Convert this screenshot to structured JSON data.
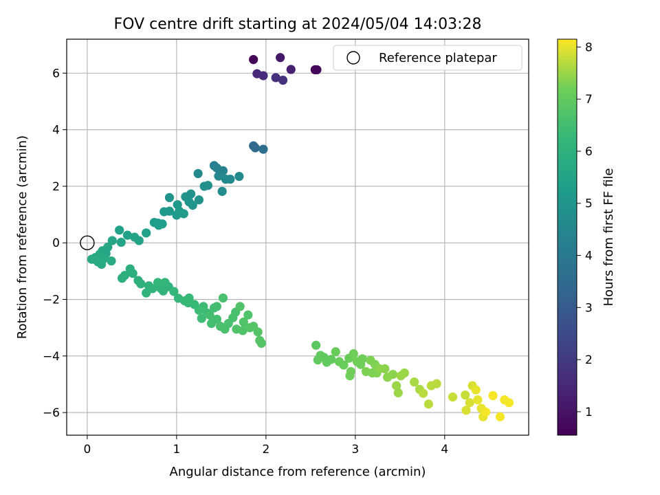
{
  "chart_data": {
    "type": "scatter",
    "title": "FOV centre drift starting at 2024/05/04 14:03:28",
    "xlabel": "Angular distance from reference (arcmin)",
    "ylabel": "Rotation from reference (arcmin)",
    "xlim": [
      -0.23,
      4.94
    ],
    "ylim": [
      -6.8,
      7.2
    ],
    "xticks": [
      0,
      1,
      2,
      3,
      4
    ],
    "yticks": [
      -6,
      -4,
      -2,
      0,
      2,
      4,
      6
    ],
    "grid": true,
    "legend": {
      "position": "top-right",
      "entries": [
        "Reference platepar"
      ]
    },
    "reference_point": {
      "x": 0,
      "y": 0,
      "label": "Reference platepar"
    },
    "colorbar": {
      "label": "Hours from first FF file",
      "colormap": "viridis",
      "range": [
        0.55,
        8.15
      ],
      "ticks": [
        1,
        2,
        3,
        4,
        5,
        6,
        7,
        8
      ]
    },
    "points": [
      {
        "x": 1.86,
        "y": 6.48,
        "c": 0.6
      },
      {
        "x": 2.55,
        "y": 6.12,
        "c": 0.65
      },
      {
        "x": 2.57,
        "y": 6.12,
        "c": 0.7
      },
      {
        "x": 2.16,
        "y": 6.55,
        "c": 1.1
      },
      {
        "x": 2.28,
        "y": 6.13,
        "c": 1.3
      },
      {
        "x": 1.9,
        "y": 5.98,
        "c": 1.5
      },
      {
        "x": 1.97,
        "y": 5.91,
        "c": 1.6
      },
      {
        "x": 2.11,
        "y": 5.84,
        "c": 1.7
      },
      {
        "x": 2.19,
        "y": 5.75,
        "c": 1.8
      },
      {
        "x": 1.86,
        "y": 3.43,
        "c": 3.4
      },
      {
        "x": 1.88,
        "y": 3.36,
        "c": 3.5
      },
      {
        "x": 1.97,
        "y": 3.31,
        "c": 3.6
      },
      {
        "x": 1.42,
        "y": 2.73,
        "c": 4.2
      },
      {
        "x": 1.45,
        "y": 2.65,
        "c": 4.3
      },
      {
        "x": 1.52,
        "y": 2.55,
        "c": 4.4
      },
      {
        "x": 1.47,
        "y": 2.36,
        "c": 4.5
      },
      {
        "x": 1.55,
        "y": 2.25,
        "c": 4.6
      },
      {
        "x": 1.6,
        "y": 2.25,
        "c": 4.6
      },
      {
        "x": 1.7,
        "y": 2.35,
        "c": 4.6
      },
      {
        "x": 1.51,
        "y": 1.82,
        "c": 4.7
      },
      {
        "x": 1.24,
        "y": 2.45,
        "c": 4.6
      },
      {
        "x": 1.35,
        "y": 2.03,
        "c": 4.8
      },
      {
        "x": 1.31,
        "y": 2.0,
        "c": 4.8
      },
      {
        "x": 1.1,
        "y": 1.63,
        "c": 4.9
      },
      {
        "x": 1.16,
        "y": 1.73,
        "c": 4.9
      },
      {
        "x": 1.25,
        "y": 1.52,
        "c": 4.9
      },
      {
        "x": 1.14,
        "y": 1.45,
        "c": 5.0
      },
      {
        "x": 1.18,
        "y": 1.33,
        "c": 5.0
      },
      {
        "x": 0.92,
        "y": 1.6,
        "c": 5.0
      },
      {
        "x": 1.01,
        "y": 1.35,
        "c": 5.1
      },
      {
        "x": 0.92,
        "y": 1.12,
        "c": 5.1
      },
      {
        "x": 0.86,
        "y": 1.1,
        "c": 5.1
      },
      {
        "x": 1.03,
        "y": 1.12,
        "c": 5.2
      },
      {
        "x": 1.08,
        "y": 1.03,
        "c": 5.2
      },
      {
        "x": 1.0,
        "y": 0.98,
        "c": 5.2
      },
      {
        "x": 0.75,
        "y": 0.72,
        "c": 5.3
      },
      {
        "x": 0.79,
        "y": 0.7,
        "c": 5.3
      },
      {
        "x": 0.8,
        "y": 0.62,
        "c": 5.3
      },
      {
        "x": 0.84,
        "y": 0.67,
        "c": 5.3
      },
      {
        "x": 0.66,
        "y": 0.35,
        "c": 5.4
      },
      {
        "x": 0.36,
        "y": 0.45,
        "c": 5.4
      },
      {
        "x": 0.45,
        "y": 0.27,
        "c": 5.4
      },
      {
        "x": 0.53,
        "y": 0.2,
        "c": 5.5
      },
      {
        "x": 0.58,
        "y": 0.08,
        "c": 5.5
      },
      {
        "x": 0.38,
        "y": 0.02,
        "c": 5.5
      },
      {
        "x": 0.28,
        "y": 0.08,
        "c": 5.6
      },
      {
        "x": 0.23,
        "y": -0.15,
        "c": 5.6
      },
      {
        "x": 0.17,
        "y": -0.28,
        "c": 5.6
      },
      {
        "x": 0.21,
        "y": -0.38,
        "c": 5.6
      },
      {
        "x": 0.14,
        "y": -0.4,
        "c": 5.7
      },
      {
        "x": 0.09,
        "y": -0.52,
        "c": 5.7
      },
      {
        "x": 0.05,
        "y": -0.58,
        "c": 5.7
      },
      {
        "x": 0.12,
        "y": -0.67,
        "c": 5.7
      },
      {
        "x": 0.19,
        "y": -0.55,
        "c": 5.7
      },
      {
        "x": 0.27,
        "y": -0.64,
        "c": 5.8
      },
      {
        "x": 0.16,
        "y": -0.76,
        "c": 5.8
      },
      {
        "x": 0.1,
        "y": -0.6,
        "c": 5.8
      },
      {
        "x": 0.48,
        "y": -0.92,
        "c": 5.9
      },
      {
        "x": 0.51,
        "y": -1.08,
        "c": 5.9
      },
      {
        "x": 0.42,
        "y": -1.15,
        "c": 5.9
      },
      {
        "x": 0.39,
        "y": -1.25,
        "c": 5.9
      },
      {
        "x": 0.57,
        "y": -1.33,
        "c": 6.0
      },
      {
        "x": 0.6,
        "y": -1.45,
        "c": 6.0
      },
      {
        "x": 0.69,
        "y": -1.52,
        "c": 6.0
      },
      {
        "x": 0.73,
        "y": -1.62,
        "c": 6.1
      },
      {
        "x": 0.66,
        "y": -1.77,
        "c": 6.1
      },
      {
        "x": 0.82,
        "y": -1.6,
        "c": 6.1
      },
      {
        "x": 0.85,
        "y": -1.7,
        "c": 6.1
      },
      {
        "x": 0.91,
        "y": -1.55,
        "c": 6.1
      },
      {
        "x": 0.79,
        "y": -1.4,
        "c": 6.2
      },
      {
        "x": 0.87,
        "y": -1.4,
        "c": 6.2
      },
      {
        "x": 0.97,
        "y": -1.72,
        "c": 6.2
      },
      {
        "x": 1.02,
        "y": -1.96,
        "c": 6.2
      },
      {
        "x": 1.09,
        "y": -2.05,
        "c": 6.3
      },
      {
        "x": 1.13,
        "y": -2.12,
        "c": 6.3
      },
      {
        "x": 1.14,
        "y": -1.95,
        "c": 6.3
      },
      {
        "x": 1.2,
        "y": -2.18,
        "c": 6.3
      },
      {
        "x": 1.25,
        "y": -2.38,
        "c": 6.4
      },
      {
        "x": 1.3,
        "y": -2.25,
        "c": 6.4
      },
      {
        "x": 1.34,
        "y": -2.48,
        "c": 6.4
      },
      {
        "x": 1.28,
        "y": -2.67,
        "c": 6.4
      },
      {
        "x": 1.37,
        "y": -2.55,
        "c": 6.5
      },
      {
        "x": 1.42,
        "y": -2.3,
        "c": 6.5
      },
      {
        "x": 1.45,
        "y": -2.25,
        "c": 6.5
      },
      {
        "x": 1.39,
        "y": -2.85,
        "c": 6.5
      },
      {
        "x": 1.45,
        "y": -2.7,
        "c": 6.5
      },
      {
        "x": 1.49,
        "y": -2.95,
        "c": 6.6
      },
      {
        "x": 1.52,
        "y": -1.95,
        "c": 6.6
      },
      {
        "x": 1.54,
        "y": -3.05,
        "c": 6.6
      },
      {
        "x": 1.58,
        "y": -2.85,
        "c": 6.6
      },
      {
        "x": 1.63,
        "y": -2.65,
        "c": 6.6
      },
      {
        "x": 1.66,
        "y": -2.45,
        "c": 6.6
      },
      {
        "x": 1.67,
        "y": -3.05,
        "c": 6.7
      },
      {
        "x": 1.71,
        "y": -2.25,
        "c": 6.7
      },
      {
        "x": 1.75,
        "y": -2.8,
        "c": 6.7
      },
      {
        "x": 1.74,
        "y": -3.1,
        "c": 6.7
      },
      {
        "x": 1.8,
        "y": -2.55,
        "c": 6.7
      },
      {
        "x": 1.82,
        "y": -3.0,
        "c": 6.8
      },
      {
        "x": 1.86,
        "y": -2.95,
        "c": 6.8
      },
      {
        "x": 1.91,
        "y": -3.15,
        "c": 6.8
      },
      {
        "x": 1.93,
        "y": -3.45,
        "c": 6.8
      },
      {
        "x": 1.95,
        "y": -3.55,
        "c": 6.8
      },
      {
        "x": 2.56,
        "y": -3.62,
        "c": 6.9
      },
      {
        "x": 2.61,
        "y": -3.98,
        "c": 7.0
      },
      {
        "x": 2.58,
        "y": -4.14,
        "c": 7.0
      },
      {
        "x": 2.65,
        "y": -4.05,
        "c": 7.0
      },
      {
        "x": 2.68,
        "y": -4.22,
        "c": 7.0
      },
      {
        "x": 2.73,
        "y": -4.12,
        "c": 7.0
      },
      {
        "x": 2.78,
        "y": -3.85,
        "c": 7.1
      },
      {
        "x": 2.82,
        "y": -4.2,
        "c": 7.1
      },
      {
        "x": 2.87,
        "y": -4.32,
        "c": 7.1
      },
      {
        "x": 2.93,
        "y": -4.08,
        "c": 7.1
      },
      {
        "x": 2.98,
        "y": -3.92,
        "c": 7.2
      },
      {
        "x": 2.95,
        "y": -4.55,
        "c": 7.2
      },
      {
        "x": 2.94,
        "y": -4.7,
        "c": 7.2
      },
      {
        "x": 3.02,
        "y": -4.2,
        "c": 7.2
      },
      {
        "x": 3.06,
        "y": -4.3,
        "c": 7.2
      },
      {
        "x": 3.08,
        "y": -4.1,
        "c": 7.2
      },
      {
        "x": 3.12,
        "y": -4.55,
        "c": 7.3
      },
      {
        "x": 3.17,
        "y": -4.15,
        "c": 7.3
      },
      {
        "x": 3.19,
        "y": -4.6,
        "c": 7.3
      },
      {
        "x": 3.22,
        "y": -4.3,
        "c": 7.3
      },
      {
        "x": 3.24,
        "y": -4.6,
        "c": 7.3
      },
      {
        "x": 3.27,
        "y": -4.45,
        "c": 7.4
      },
      {
        "x": 3.33,
        "y": -4.45,
        "c": 7.4
      },
      {
        "x": 3.36,
        "y": -4.75,
        "c": 7.4
      },
      {
        "x": 3.42,
        "y": -4.65,
        "c": 7.4
      },
      {
        "x": 3.46,
        "y": -5.05,
        "c": 7.5
      },
      {
        "x": 3.48,
        "y": -5.3,
        "c": 7.5
      },
      {
        "x": 3.51,
        "y": -4.7,
        "c": 7.5
      },
      {
        "x": 3.55,
        "y": -4.6,
        "c": 7.5
      },
      {
        "x": 3.66,
        "y": -4.92,
        "c": 7.6
      },
      {
        "x": 3.72,
        "y": -5.18,
        "c": 7.6
      },
      {
        "x": 3.76,
        "y": -5.32,
        "c": 7.7
      },
      {
        "x": 3.82,
        "y": -5.7,
        "c": 7.7
      },
      {
        "x": 3.85,
        "y": -5.05,
        "c": 7.7
      },
      {
        "x": 3.91,
        "y": -4.98,
        "c": 7.7
      },
      {
        "x": 4.09,
        "y": -5.45,
        "c": 7.8
      },
      {
        "x": 4.23,
        "y": -5.38,
        "c": 7.8
      },
      {
        "x": 4.24,
        "y": -5.92,
        "c": 7.9
      },
      {
        "x": 4.28,
        "y": -5.65,
        "c": 7.9
      },
      {
        "x": 4.31,
        "y": -5.05,
        "c": 7.9
      },
      {
        "x": 4.35,
        "y": -5.2,
        "c": 8.0
      },
      {
        "x": 4.37,
        "y": -5.55,
        "c": 8.0
      },
      {
        "x": 4.41,
        "y": -5.85,
        "c": 8.0
      },
      {
        "x": 4.43,
        "y": -6.15,
        "c": 8.0
      },
      {
        "x": 4.46,
        "y": -5.98,
        "c": 8.1
      },
      {
        "x": 4.54,
        "y": -5.4,
        "c": 8.1
      },
      {
        "x": 4.62,
        "y": -6.15,
        "c": 8.1
      },
      {
        "x": 4.67,
        "y": -5.55,
        "c": 8.1
      },
      {
        "x": 4.72,
        "y": -5.65,
        "c": 8.1
      }
    ]
  }
}
